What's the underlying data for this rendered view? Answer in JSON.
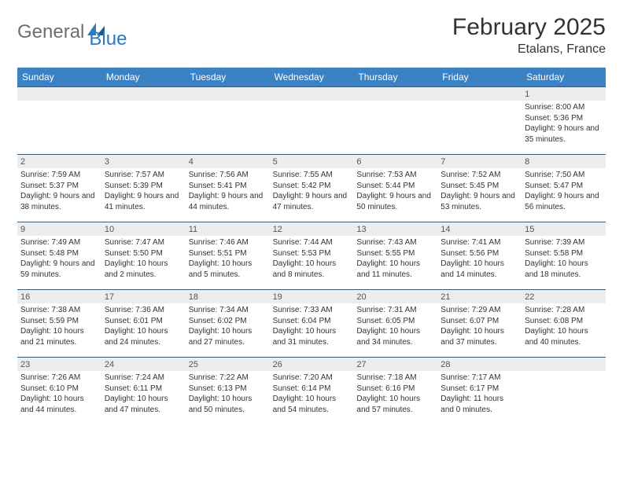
{
  "brand": {
    "part1": "General",
    "part2": "Blue"
  },
  "title": "February 2025",
  "location": "Etalans, France",
  "colors": {
    "header_bg": "#3b82c4",
    "header_text": "#ffffff",
    "cell_border": "#3b5a78",
    "daynum_bg": "#ededed",
    "text": "#333333",
    "logo_gray": "#6e6e6e",
    "logo_blue": "#2a7bbf"
  },
  "weekdays": [
    "Sunday",
    "Monday",
    "Tuesday",
    "Wednesday",
    "Thursday",
    "Friday",
    "Saturday"
  ],
  "grid": [
    [
      {
        "blank": true
      },
      {
        "blank": true
      },
      {
        "blank": true
      },
      {
        "blank": true
      },
      {
        "blank": true
      },
      {
        "blank": true
      },
      {
        "day": "1",
        "sunrise": "Sunrise: 8:00 AM",
        "sunset": "Sunset: 5:36 PM",
        "daylight": "Daylight: 9 hours and 35 minutes."
      }
    ],
    [
      {
        "day": "2",
        "sunrise": "Sunrise: 7:59 AM",
        "sunset": "Sunset: 5:37 PM",
        "daylight": "Daylight: 9 hours and 38 minutes."
      },
      {
        "day": "3",
        "sunrise": "Sunrise: 7:57 AM",
        "sunset": "Sunset: 5:39 PM",
        "daylight": "Daylight: 9 hours and 41 minutes."
      },
      {
        "day": "4",
        "sunrise": "Sunrise: 7:56 AM",
        "sunset": "Sunset: 5:41 PM",
        "daylight": "Daylight: 9 hours and 44 minutes."
      },
      {
        "day": "5",
        "sunrise": "Sunrise: 7:55 AM",
        "sunset": "Sunset: 5:42 PM",
        "daylight": "Daylight: 9 hours and 47 minutes."
      },
      {
        "day": "6",
        "sunrise": "Sunrise: 7:53 AM",
        "sunset": "Sunset: 5:44 PM",
        "daylight": "Daylight: 9 hours and 50 minutes."
      },
      {
        "day": "7",
        "sunrise": "Sunrise: 7:52 AM",
        "sunset": "Sunset: 5:45 PM",
        "daylight": "Daylight: 9 hours and 53 minutes."
      },
      {
        "day": "8",
        "sunrise": "Sunrise: 7:50 AM",
        "sunset": "Sunset: 5:47 PM",
        "daylight": "Daylight: 9 hours and 56 minutes."
      }
    ],
    [
      {
        "day": "9",
        "sunrise": "Sunrise: 7:49 AM",
        "sunset": "Sunset: 5:48 PM",
        "daylight": "Daylight: 9 hours and 59 minutes."
      },
      {
        "day": "10",
        "sunrise": "Sunrise: 7:47 AM",
        "sunset": "Sunset: 5:50 PM",
        "daylight": "Daylight: 10 hours and 2 minutes."
      },
      {
        "day": "11",
        "sunrise": "Sunrise: 7:46 AM",
        "sunset": "Sunset: 5:51 PM",
        "daylight": "Daylight: 10 hours and 5 minutes."
      },
      {
        "day": "12",
        "sunrise": "Sunrise: 7:44 AM",
        "sunset": "Sunset: 5:53 PM",
        "daylight": "Daylight: 10 hours and 8 minutes."
      },
      {
        "day": "13",
        "sunrise": "Sunrise: 7:43 AM",
        "sunset": "Sunset: 5:55 PM",
        "daylight": "Daylight: 10 hours and 11 minutes."
      },
      {
        "day": "14",
        "sunrise": "Sunrise: 7:41 AM",
        "sunset": "Sunset: 5:56 PM",
        "daylight": "Daylight: 10 hours and 14 minutes."
      },
      {
        "day": "15",
        "sunrise": "Sunrise: 7:39 AM",
        "sunset": "Sunset: 5:58 PM",
        "daylight": "Daylight: 10 hours and 18 minutes."
      }
    ],
    [
      {
        "day": "16",
        "sunrise": "Sunrise: 7:38 AM",
        "sunset": "Sunset: 5:59 PM",
        "daylight": "Daylight: 10 hours and 21 minutes."
      },
      {
        "day": "17",
        "sunrise": "Sunrise: 7:36 AM",
        "sunset": "Sunset: 6:01 PM",
        "daylight": "Daylight: 10 hours and 24 minutes."
      },
      {
        "day": "18",
        "sunrise": "Sunrise: 7:34 AM",
        "sunset": "Sunset: 6:02 PM",
        "daylight": "Daylight: 10 hours and 27 minutes."
      },
      {
        "day": "19",
        "sunrise": "Sunrise: 7:33 AM",
        "sunset": "Sunset: 6:04 PM",
        "daylight": "Daylight: 10 hours and 31 minutes."
      },
      {
        "day": "20",
        "sunrise": "Sunrise: 7:31 AM",
        "sunset": "Sunset: 6:05 PM",
        "daylight": "Daylight: 10 hours and 34 minutes."
      },
      {
        "day": "21",
        "sunrise": "Sunrise: 7:29 AM",
        "sunset": "Sunset: 6:07 PM",
        "daylight": "Daylight: 10 hours and 37 minutes."
      },
      {
        "day": "22",
        "sunrise": "Sunrise: 7:28 AM",
        "sunset": "Sunset: 6:08 PM",
        "daylight": "Daylight: 10 hours and 40 minutes."
      }
    ],
    [
      {
        "day": "23",
        "sunrise": "Sunrise: 7:26 AM",
        "sunset": "Sunset: 6:10 PM",
        "daylight": "Daylight: 10 hours and 44 minutes."
      },
      {
        "day": "24",
        "sunrise": "Sunrise: 7:24 AM",
        "sunset": "Sunset: 6:11 PM",
        "daylight": "Daylight: 10 hours and 47 minutes."
      },
      {
        "day": "25",
        "sunrise": "Sunrise: 7:22 AM",
        "sunset": "Sunset: 6:13 PM",
        "daylight": "Daylight: 10 hours and 50 minutes."
      },
      {
        "day": "26",
        "sunrise": "Sunrise: 7:20 AM",
        "sunset": "Sunset: 6:14 PM",
        "daylight": "Daylight: 10 hours and 54 minutes."
      },
      {
        "day": "27",
        "sunrise": "Sunrise: 7:18 AM",
        "sunset": "Sunset: 6:16 PM",
        "daylight": "Daylight: 10 hours and 57 minutes."
      },
      {
        "day": "28",
        "sunrise": "Sunrise: 7:17 AM",
        "sunset": "Sunset: 6:17 PM",
        "daylight": "Daylight: 11 hours and 0 minutes."
      },
      {
        "blank": true
      }
    ]
  ]
}
